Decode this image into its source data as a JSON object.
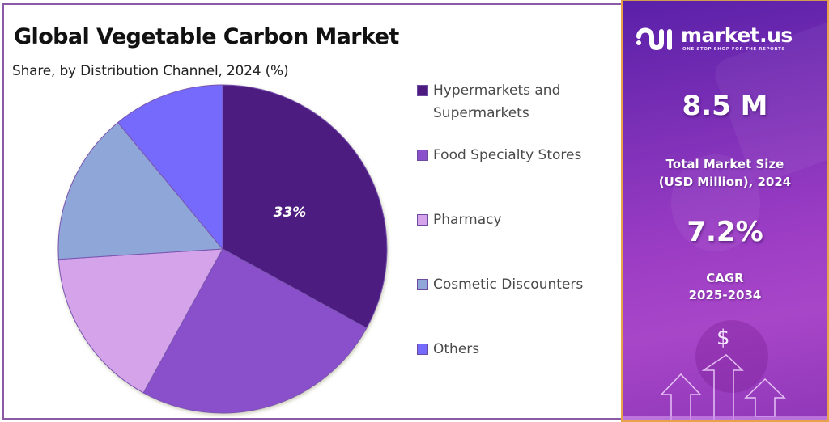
{
  "chart_data": {
    "type": "pie",
    "title": "Global Vegetable Carbon Market",
    "subtitle": "Share, by Distribution Channel, 2024 (%)",
    "categories": [
      "Hypermarkets and Supermarkets",
      "Food Specialty Stores",
      "Pharmacy",
      "Cosmetic Discounters",
      "Others"
    ],
    "values": [
      33,
      25,
      16,
      15,
      11
    ],
    "colors": [
      "#4d1a80",
      "#8a4fcb",
      "#d4a3ea",
      "#8ea7d8",
      "#746bfc"
    ],
    "data_labels": [
      "33%",
      "",
      "",
      "",
      ""
    ],
    "legend_position": "right",
    "start_angle_deg": 0,
    "direction": "clockwise"
  },
  "header": {
    "title": "Global Vegetable Carbon Market",
    "subtitle": "Share, by Distribution Channel, 2024 (%)"
  },
  "legend": {
    "items": [
      {
        "label": "Hypermarkets and Supermarkets",
        "color": "#4d1a80"
      },
      {
        "label": "Food Specialty Stores",
        "color": "#8a4fcb"
      },
      {
        "label": "Pharmacy",
        "color": "#d4a3ea"
      },
      {
        "label": "Cosmetic Discounters",
        "color": "#8ea7d8"
      },
      {
        "label": "Others",
        "color": "#746bfc"
      }
    ]
  },
  "pie": {
    "label_hyper": "33%"
  },
  "sidebar": {
    "brand_name": "market.us",
    "brand_tagline": "ONE STOP SHOP FOR THE REPORTS",
    "market_size_value": "8.5 M",
    "market_size_label_1": "Total Market Size",
    "market_size_label_2": "(USD Million), 2024",
    "cagr_value": "7.2%",
    "cagr_label_1": "CAGR",
    "cagr_label_2": "2025-2034",
    "currency_symbol": "$",
    "colors": {
      "border": "#e8a34a",
      "gradient_start": "#5a20a8",
      "gradient_end": "#a846c8"
    }
  }
}
